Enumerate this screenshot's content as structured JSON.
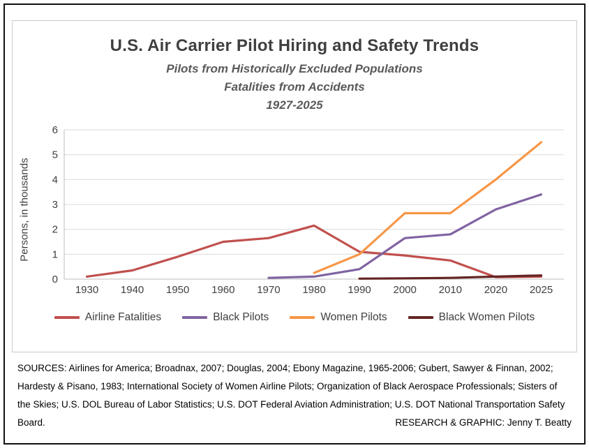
{
  "chart_data": {
    "type": "line",
    "title": "U.S. Air Carrier Pilot Hiring and Safety Trends",
    "subtitle_lines": [
      "Pilots from Historically Excluded Populations",
      "Fatalities from Accidents",
      "1927-2025"
    ],
    "ylabel": "Persons, in thousands",
    "xlabel": "",
    "ylim": [
      0,
      6
    ],
    "yticks": [
      0,
      1,
      2,
      3,
      4,
      5,
      6
    ],
    "categories": [
      "1930",
      "1940",
      "1950",
      "1960",
      "1970",
      "1980",
      "1990",
      "2000",
      "2010",
      "2020",
      "2025"
    ],
    "grid": true,
    "legend_position": "bottom",
    "series": [
      {
        "name": "Airline Fatalities",
        "color": "#C0504D",
        "values": [
          0.1,
          0.35,
          0.9,
          1.5,
          1.65,
          2.15,
          1.1,
          0.95,
          0.75,
          0.08,
          0.1
        ]
      },
      {
        "name": "Black Pilots",
        "color": "#8064A2",
        "values": [
          null,
          null,
          null,
          null,
          0.05,
          0.1,
          0.4,
          1.65,
          1.8,
          2.8,
          3.4
        ]
      },
      {
        "name": "Women Pilots",
        "color": "#F79646",
        "values": [
          null,
          null,
          null,
          null,
          null,
          0.25,
          1.0,
          2.65,
          2.65,
          4.0,
          5.5
        ]
      },
      {
        "name": "Black Women Pilots",
        "color": "#632523",
        "values": [
          null,
          null,
          null,
          null,
          null,
          null,
          0.02,
          0.03,
          0.05,
          0.1,
          0.15
        ]
      }
    ]
  },
  "footer": {
    "sources": "SOURCES: Airlines for America; Broadnax, 2007; Douglas, 2004; Ebony Magazine, 1965-2006; Gubert, Sawyer & Finnan, 2002; Hardesty & Pisano, 1983; International Society of Women Airline Pilots; Organization of Black Aerospace Professionals; Sisters of the Skies; U.S. DOL Bureau of Labor Statistics; U.S. DOT Federal Aviation Administration; U.S. DOT National Transportation Safety Board.",
    "credit": "RESEARCH & GRAPHIC: Jenny T. Beatty"
  }
}
